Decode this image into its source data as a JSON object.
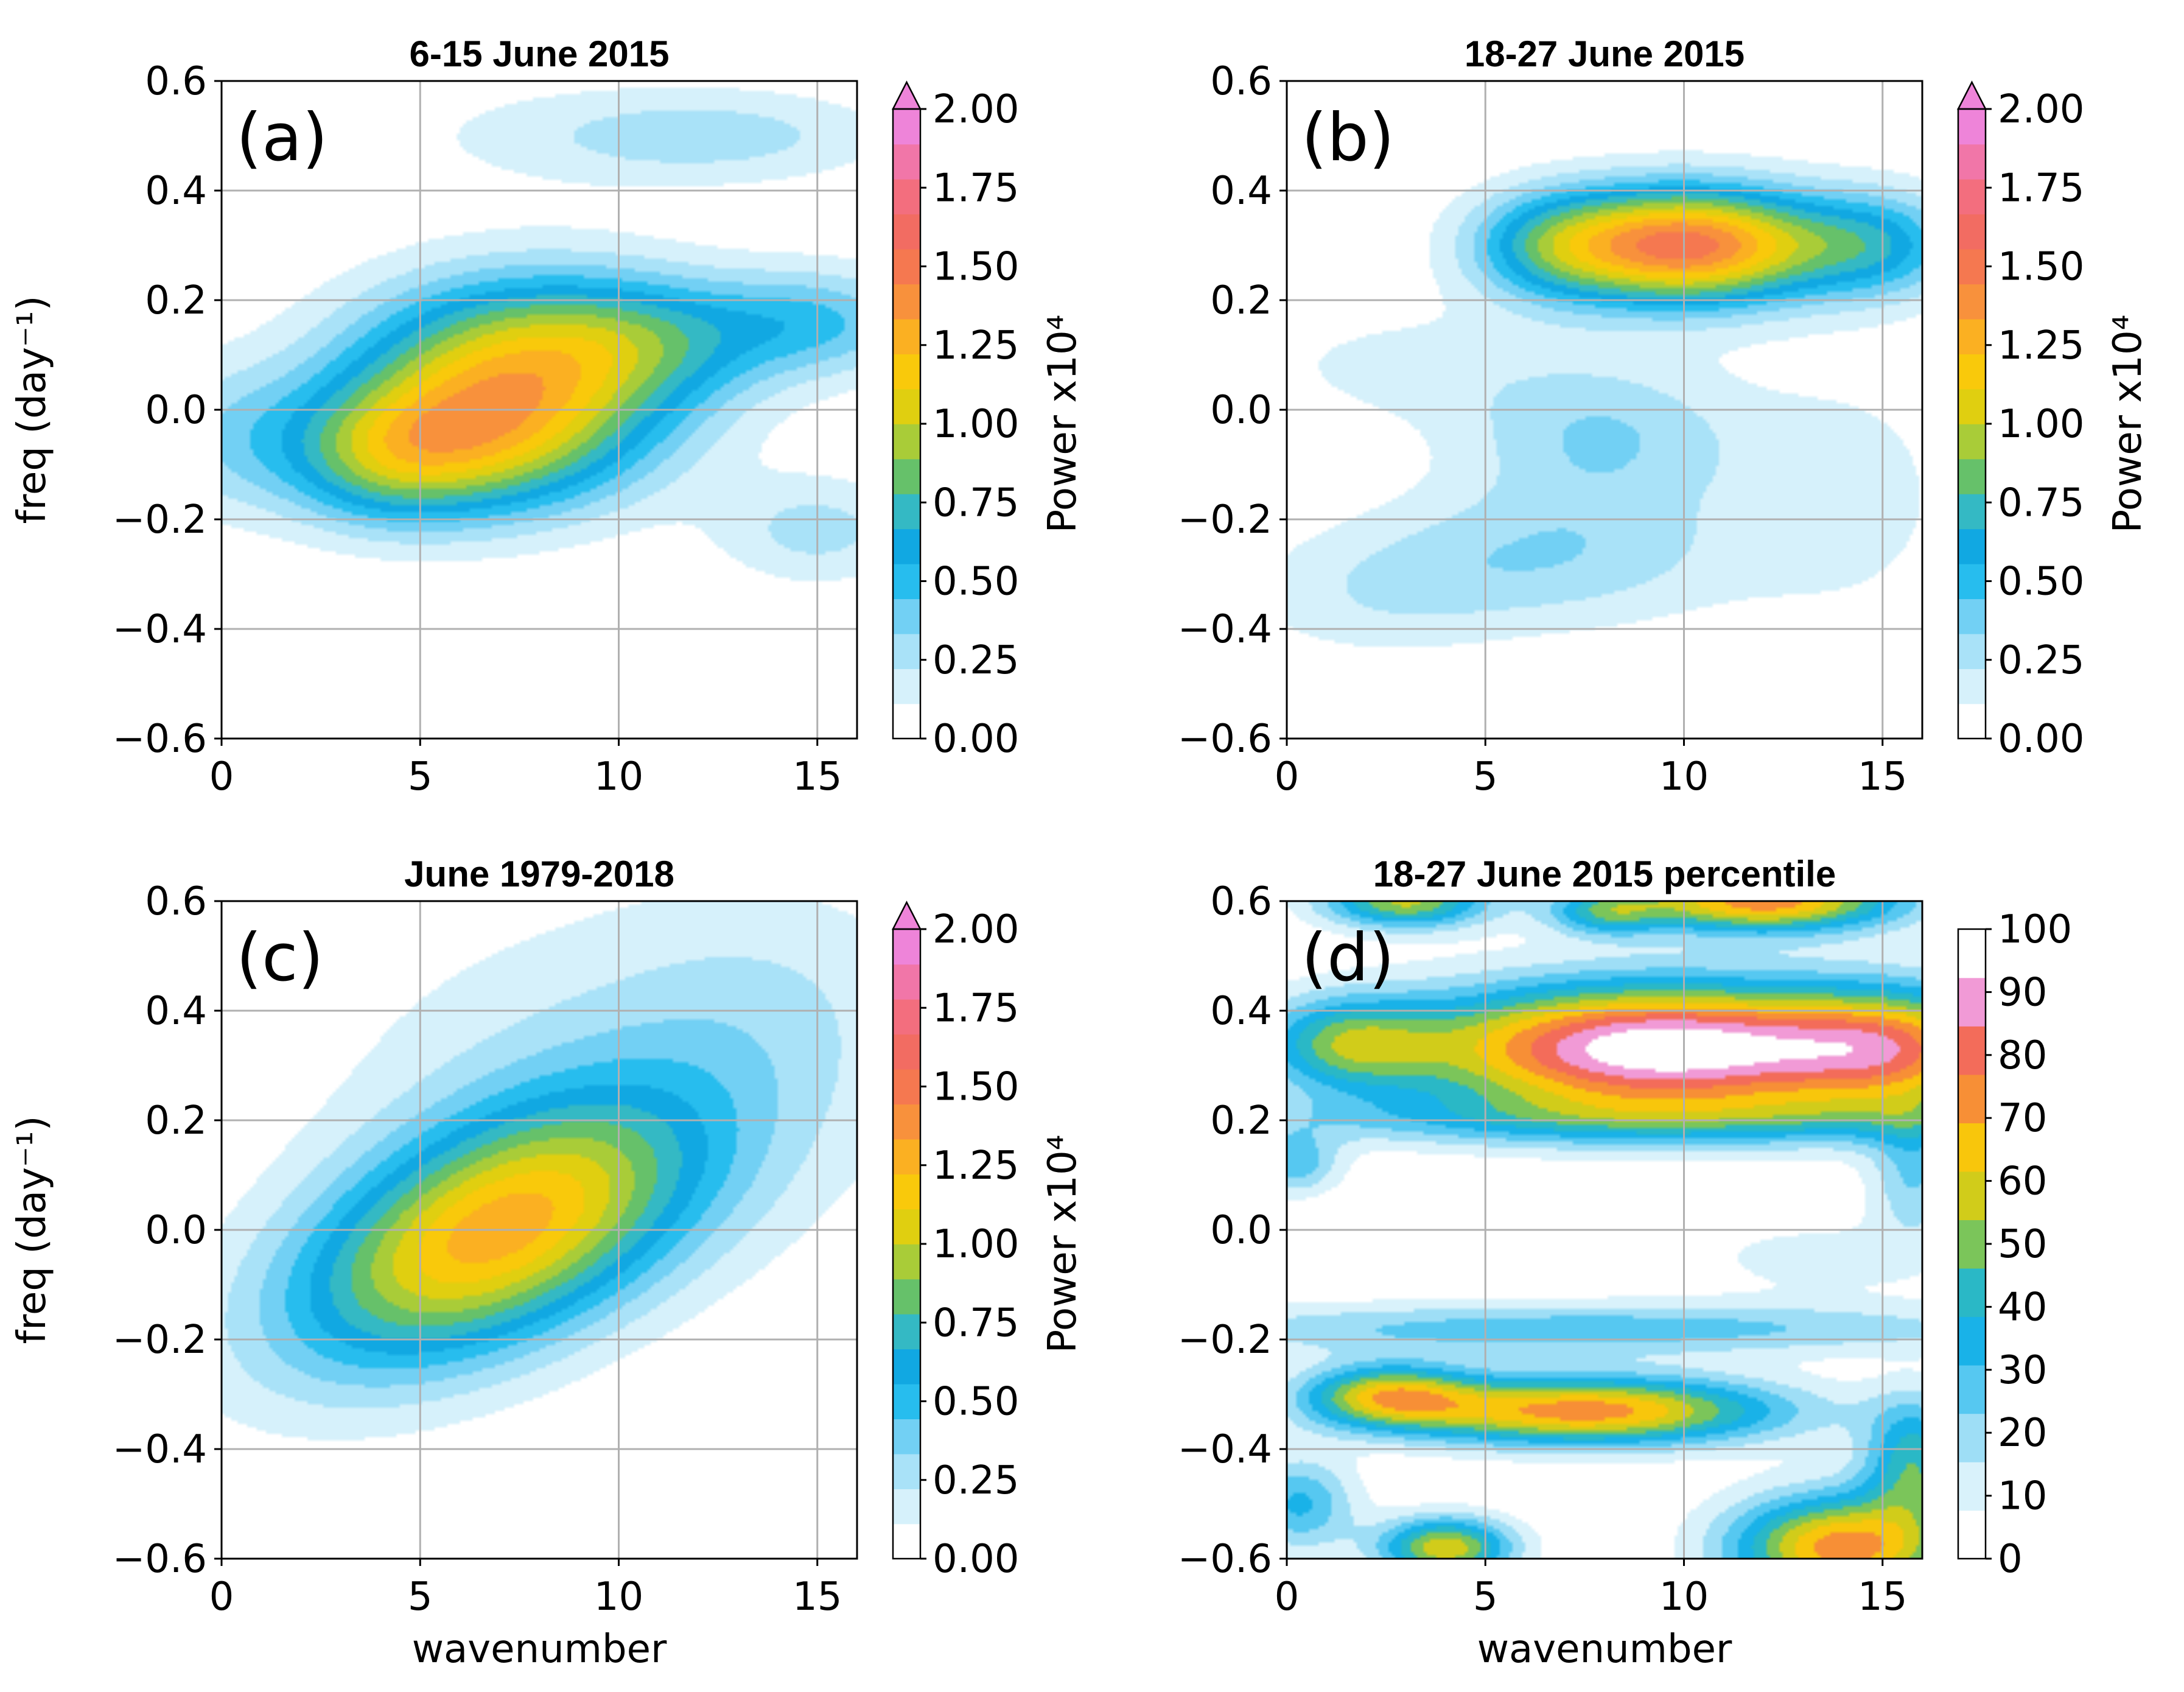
{
  "colormaps": {
    "power": [
      "#ffffff",
      "#d6f1fb",
      "#a9e2f8",
      "#72d0f4",
      "#27bdee",
      "#11a8e2",
      "#34b9c4",
      "#66c16a",
      "#a9cc38",
      "#e0cf10",
      "#f9c90b",
      "#fbb022",
      "#f8913c",
      "#f57850",
      "#f26c62",
      "#f36e7e",
      "#f176a8",
      "#ee84d9"
    ],
    "percentile": [
      "#ffffff",
      "#d9f2fb",
      "#9edef6",
      "#56c8f1",
      "#19b2e8",
      "#2ab8c6",
      "#7bc55a",
      "#d1cc1a",
      "#f8c60c",
      "#f78f36",
      "#f36c5a",
      "#f19ad6",
      "#ffffff"
    ]
  },
  "chart_data": [
    {
      "panel": "a",
      "type": "heatmap",
      "title": "6-15 June 2015",
      "panel_label": "(a)",
      "xlabel": "",
      "ylabel": "freq (day⁻¹)",
      "xlim": [
        0,
        16
      ],
      "ylim": [
        -0.6,
        0.6
      ],
      "x_ticks": [
        "0",
        "5",
        "10",
        "15"
      ],
      "y_ticks": [
        "−0.6",
        "−0.4",
        "−0.2",
        "0.0",
        "0.2",
        "0.4",
        "0.6"
      ],
      "grid": true,
      "colormap": "power",
      "colorbar": {
        "label": "Power x10⁴",
        "min": 0,
        "max": 2,
        "extend": "max",
        "ticks": [
          "0.00",
          "0.25",
          "0.50",
          "0.75",
          "1.00",
          "1.25",
          "1.50",
          "1.75",
          "2.00"
        ]
      },
      "features": [
        {
          "x": 7.8,
          "y": 0.1,
          "sx": 3.0,
          "sy": 0.11,
          "amp": 1.0
        },
        {
          "x": 6.0,
          "y": -0.06,
          "sx": 3.0,
          "sy": 0.1,
          "amp": 1.05
        },
        {
          "x": 4.0,
          "y": -0.1,
          "sx": 1.6,
          "sy": 0.08,
          "amp": 0.3
        },
        {
          "x": 11.0,
          "y": 0.13,
          "sx": 2.0,
          "sy": 0.08,
          "amp": 0.3
        },
        {
          "x": 15.0,
          "y": 0.16,
          "sx": 2.0,
          "sy": 0.07,
          "amp": 0.45
        },
        {
          "x": 15.0,
          "y": -0.22,
          "sx": 1.8,
          "sy": 0.07,
          "amp": 0.28
        },
        {
          "x": 0.0,
          "y": -0.05,
          "sx": 1.5,
          "sy": 0.1,
          "amp": 0.22
        },
        {
          "x": 13.0,
          "y": 0.5,
          "sx": 3.0,
          "sy": 0.06,
          "amp": 0.22
        },
        {
          "x": 9.0,
          "y": 0.5,
          "sx": 3.5,
          "sy": 0.07,
          "amp": 0.15
        }
      ]
    },
    {
      "panel": "b",
      "type": "heatmap",
      "title": "18-27 June 2015",
      "panel_label": "(b)",
      "xlabel": "",
      "ylabel": "",
      "xlim": [
        0,
        16
      ],
      "ylim": [
        -0.6,
        0.6
      ],
      "x_ticks": [
        "0",
        "5",
        "10",
        "15"
      ],
      "y_ticks": [
        "−0.6",
        "−0.4",
        "−0.2",
        "0.0",
        "0.2",
        "0.4",
        "0.6"
      ],
      "grid": true,
      "colormap": "power",
      "colorbar": {
        "label": "Power x10⁴",
        "min": 0,
        "max": 2,
        "extend": "max",
        "ticks": [
          "0.00",
          "0.25",
          "0.50",
          "0.75",
          "1.00",
          "1.25",
          "1.50",
          "1.75",
          "2.00"
        ]
      },
      "features": [
        {
          "x": 10.0,
          "y": 0.3,
          "sx": 2.6,
          "sy": 0.075,
          "amp": 1.6
        },
        {
          "x": 15.0,
          "y": 0.3,
          "sx": 1.5,
          "sy": 0.07,
          "amp": 0.5
        },
        {
          "x": 6.5,
          "y": 0.3,
          "sx": 1.4,
          "sy": 0.07,
          "amp": 0.35
        },
        {
          "x": 8.0,
          "y": -0.05,
          "sx": 2.5,
          "sy": 0.1,
          "amp": 0.35
        },
        {
          "x": 6.5,
          "y": -0.27,
          "sx": 3.5,
          "sy": 0.09,
          "amp": 0.32
        },
        {
          "x": 3.0,
          "y": 0.08,
          "sx": 3.0,
          "sy": 0.08,
          "amp": 0.15
        },
        {
          "x": 2.0,
          "y": -0.35,
          "sx": 2.5,
          "sy": 0.08,
          "amp": 0.15
        },
        {
          "x": 14.0,
          "y": -0.15,
          "sx": 2.0,
          "sy": 0.15,
          "amp": 0.18
        }
      ]
    },
    {
      "panel": "c",
      "type": "heatmap",
      "title": "June 1979-2018",
      "panel_label": "(c)",
      "xlabel": "wavenumber",
      "ylabel": "freq (day⁻¹)",
      "xlim": [
        0,
        16
      ],
      "ylim": [
        -0.6,
        0.6
      ],
      "x_ticks": [
        "0",
        "5",
        "10",
        "15"
      ],
      "y_ticks": [
        "−0.6",
        "−0.4",
        "−0.2",
        "0.0",
        "0.2",
        "0.4",
        "0.6"
      ],
      "grid": true,
      "colormap": "power",
      "colorbar": {
        "label": "Power x10⁴",
        "min": 0,
        "max": 2,
        "extend": "max",
        "ticks": [
          "0.00",
          "0.25",
          "0.50",
          "0.75",
          "1.00",
          "1.25",
          "1.50",
          "1.75",
          "2.00"
        ]
      },
      "features": [
        {
          "x": 6.8,
          "y": -0.01,
          "sx": 3.6,
          "sy": 0.17,
          "rho": 0.5,
          "amp": 1.3
        },
        {
          "x": 10.0,
          "y": 0.28,
          "sx": 5.0,
          "sy": 0.22,
          "amp": 0.22
        },
        {
          "x": 14.0,
          "y": 0.45,
          "sx": 3.0,
          "sy": 0.15,
          "amp": 0.12
        }
      ]
    },
    {
      "panel": "d",
      "type": "heatmap",
      "title": "18-27 June 2015 percentile",
      "panel_label": "(d)",
      "xlabel": "wavenumber",
      "ylabel": "",
      "xlim": [
        0,
        16
      ],
      "ylim": [
        -0.6,
        0.6
      ],
      "x_ticks": [
        "0",
        "5",
        "10",
        "15"
      ],
      "y_ticks": [
        "−0.6",
        "−0.4",
        "−0.2",
        "0.0",
        "0.2",
        "0.4",
        "0.6"
      ],
      "grid": true,
      "colormap": "percentile",
      "colorbar": {
        "label": "",
        "min": 0,
        "max": 100,
        "extend": "neither",
        "ticks": [
          "0",
          "10",
          "20",
          "30",
          "40",
          "50",
          "60",
          "70",
          "80",
          "90",
          "100"
        ]
      },
      "features": [
        {
          "x": 9.5,
          "y": 0.33,
          "sx": 4.5,
          "sy": 0.085,
          "amp": 110
        },
        {
          "x": 15.5,
          "y": 0.33,
          "sx": 2.0,
          "sy": 0.08,
          "amp": 45
        },
        {
          "x": 1.5,
          "y": 0.34,
          "sx": 1.5,
          "sy": 0.06,
          "amp": 40
        },
        {
          "x": 12.0,
          "y": 0.6,
          "sx": 2.5,
          "sy": 0.04,
          "amp": 80
        },
        {
          "x": 3.0,
          "y": 0.6,
          "sx": 1.5,
          "sy": 0.035,
          "amp": 60
        },
        {
          "x": 8.0,
          "y": 0.58,
          "sx": 1.0,
          "sy": 0.03,
          "amp": 35
        },
        {
          "x": 7.5,
          "y": -0.33,
          "sx": 3.5,
          "sy": 0.045,
          "amp": 80
        },
        {
          "x": 2.5,
          "y": -0.3,
          "sx": 1.5,
          "sy": 0.04,
          "amp": 55
        },
        {
          "x": 14.0,
          "y": -0.58,
          "sx": 2.0,
          "sy": 0.07,
          "amp": 80
        },
        {
          "x": 4.0,
          "y": -0.58,
          "sx": 1.2,
          "sy": 0.04,
          "amp": 65
        },
        {
          "x": 0.3,
          "y": -0.5,
          "sx": 1.0,
          "sy": 0.06,
          "amp": 35
        },
        {
          "x": 15.8,
          "y": -0.42,
          "sx": 0.9,
          "sy": 0.08,
          "amp": 45
        },
        {
          "x": 9.0,
          "y": 0.2,
          "sx": 8.0,
          "sy": 0.035,
          "amp": 25
        },
        {
          "x": 7.5,
          "y": -0.18,
          "sx": 8.0,
          "sy": 0.035,
          "amp": 30
        },
        {
          "x": 0.2,
          "y": 0.12,
          "sx": 0.8,
          "sy": 0.04,
          "amp": 30
        },
        {
          "x": 13.5,
          "y": -0.05,
          "sx": 2.5,
          "sy": 0.05,
          "amp": 12
        },
        {
          "x": 15.8,
          "y": 0.1,
          "sx": 0.8,
          "sy": 0.08,
          "amp": 25
        }
      ]
    }
  ]
}
